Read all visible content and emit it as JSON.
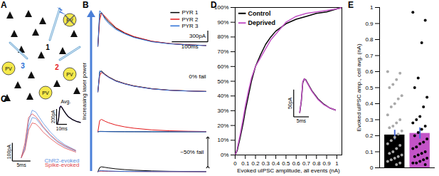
{
  "chart_data": [
    {
      "panel": "A",
      "type": "diagram",
      "cells": [
        "PV",
        "PV",
        "PV",
        "PV"
      ],
      "cell_color": "#f5e94c",
      "electrodes": [
        {
          "label": "3",
          "color": "#2b6fd6"
        },
        {
          "label": "1",
          "color": "#000000"
        },
        {
          "label": "2",
          "color": "#e41a1c"
        }
      ]
    },
    {
      "panel": "B",
      "type": "line",
      "tick_labels": false,
      "annotations": [
        "Increasing laser power",
        "0% fail",
        "~50% fail"
      ],
      "x": [
        0,
        5,
        10,
        20,
        30,
        50,
        75,
        100,
        150,
        200,
        250,
        300
      ],
      "xlim": [
        -10,
        310
      ],
      "ylim": [
        -30,
        960
      ],
      "series": [
        {
          "name": "PYR 1",
          "color": "#000000",
          "rows": [
            [
              0,
              850,
              900,
              760,
              650,
              480,
              350,
              250,
              130,
              70,
              40,
              20
            ],
            [
              0,
              520,
              560,
              470,
              400,
              300,
              220,
              160,
              85,
              45,
              25,
              12
            ],
            [
              0,
              10,
              10,
              8,
              6,
              4,
              3,
              2,
              1,
              0,
              0,
              0
            ],
            [
              0,
              110,
              130,
              115,
              100,
              75,
              55,
              40,
              20,
              10,
              6,
              3
            ]
          ]
        },
        {
          "name": "PYR 2",
          "color": "#e41a1c",
          "rows": [
            [
              0,
              700,
              880,
              800,
              690,
              500,
              360,
              260,
              135,
              72,
              40,
              20
            ],
            [
              0,
              430,
              520,
              460,
              390,
              290,
              215,
              155,
              80,
              42,
              24,
              12
            ],
            [
              0,
              300,
              330,
              280,
              240,
              180,
              130,
              95,
              50,
              26,
              14,
              7
            ],
            [
              0,
              15,
              15,
              12,
              10,
              7,
              5,
              3,
              2,
              1,
              0,
              0
            ]
          ]
        },
        {
          "name": "PYR 3",
          "color": "#2b6fd6",
          "rows": [
            [
              0,
              950,
              900,
              720,
              610,
              450,
              330,
              235,
              120,
              65,
              35,
              18
            ],
            [
              0,
              560,
              540,
              450,
              385,
              285,
              210,
              150,
              78,
              40,
              22,
              10
            ],
            [
              0,
              5,
              5,
              4,
              3,
              2,
              1,
              1,
              0,
              0,
              0,
              0
            ],
            [
              0,
              25,
              25,
              20,
              16,
              12,
              8,
              6,
              3,
              2,
              1,
              0
            ]
          ]
        }
      ],
      "scale_bars": [
        {
          "axis": "y",
          "value": 300,
          "label": "300pA"
        },
        {
          "axis": "x",
          "value": 100,
          "label": "100ms"
        }
      ]
    },
    {
      "panel": "C",
      "type": "line",
      "tick_labels": false,
      "x": [
        0,
        1,
        2,
        3,
        4,
        5,
        6,
        8,
        10,
        12,
        15
      ],
      "xlim": [
        -5,
        16
      ],
      "ylim": [
        -80,
        300
      ],
      "series": [
        {
          "name": "ChR2-evoked",
          "color": "#5b8fe0",
          "traces": [
            [
              0,
              60,
              200,
              260,
              250,
              220,
              190,
              140,
              100,
              70,
              40
            ],
            [
              0,
              50,
              170,
              220,
              215,
              190,
              165,
              120,
              85,
              60,
              35
            ]
          ]
        },
        {
          "name": "Spike-evoked",
          "color": "#e0454a",
          "traces": [
            [
              0,
              80,
              220,
              240,
              225,
              200,
              170,
              125,
              90,
              65,
              38
            ],
            [
              0,
              40,
              150,
              190,
              185,
              165,
              140,
              105,
              75,
              52,
              30
            ]
          ]
        }
      ],
      "scale_bars": [
        {
          "axis": "y",
          "value": 100,
          "label": "100pA"
        },
        {
          "axis": "x",
          "value": 5,
          "label": "5ms"
        }
      ],
      "inset": {
        "type": "line",
        "title": "Avg.",
        "tick_labels": false,
        "x": [
          0,
          1,
          2,
          3,
          4,
          6,
          8,
          10,
          14,
          18,
          22
        ],
        "xlim": [
          -1,
          23
        ],
        "ylim": [
          -10,
          250
        ],
        "series": [
          {
            "color": "#7b5cc8",
            "values": [
              0,
              70,
              210,
              230,
              215,
              170,
              130,
              95,
              55,
              30,
              15
            ]
          },
          {
            "color": "#000000",
            "values": [
              0,
              60,
              200,
              225,
              212,
              168,
              128,
              93,
              54,
              29,
              14
            ]
          }
        ],
        "scale_bars": [
          {
            "axis": "y",
            "value": 200,
            "label": "200pA"
          },
          {
            "axis": "x",
            "value": 10,
            "label": "10ms"
          }
        ]
      }
    },
    {
      "panel": "D",
      "type": "line",
      "x_label": "Evoked uIPSC amplitude, all events (nA)",
      "x": [
        0,
        0.02,
        0.05,
        0.08,
        0.1,
        0.13,
        0.16,
        0.2,
        0.25,
        0.3,
        0.35,
        0.4,
        0.5,
        0.6,
        0.7,
        0.8,
        0.9,
        1.0,
        1.05
      ],
      "xlim": [
        0,
        1.05
      ],
      "ylim": [
        0,
        100
      ],
      "xticks": [
        0,
        0.1,
        0.2,
        0.3,
        0.4,
        0.5,
        0.6,
        0.7,
        0.8,
        0.9,
        1
      ],
      "yticks": [
        {
          "value": 0,
          "label": "0%"
        },
        {
          "value": 10,
          "label": "10%"
        },
        {
          "value": 20,
          "label": "20%"
        },
        {
          "value": 30,
          "label": "30%"
        },
        {
          "value": 40,
          "label": "40%"
        },
        {
          "value": 50,
          "label": "50%"
        },
        {
          "value": 60,
          "label": "60%"
        },
        {
          "value": 70,
          "label": "70%"
        },
        {
          "value": 80,
          "label": "80%"
        },
        {
          "value": 90,
          "label": "90%"
        },
        {
          "value": 100,
          "label": "100%"
        }
      ],
      "legend": "top-left",
      "series": [
        {
          "name": "Control",
          "color": "#000000",
          "values": [
            0,
            3,
            12,
            22,
            30,
            40,
            50,
            60,
            68,
            75,
            80,
            84,
            89,
            92,
            94,
            96,
            97,
            99,
            100
          ]
        },
        {
          "name": "Deprived",
          "color": "#c353c7",
          "values": [
            0,
            4,
            14,
            25,
            33,
            43,
            52,
            60,
            66,
            72,
            78,
            82,
            90,
            94,
            96,
            97,
            98,
            99,
            100
          ]
        }
      ],
      "inset": {
        "type": "line",
        "tick_labels": false,
        "x": [
          0,
          0.5,
          1,
          1.5,
          2,
          3,
          4,
          6,
          8,
          10,
          12
        ],
        "xlim": [
          -3,
          12
        ],
        "ylim": [
          -10,
          70
        ],
        "series": [
          {
            "color": "#000000",
            "values": [
              0,
              20,
              55,
              62,
              60,
              50,
              40,
              25,
              15,
              8,
              4
            ]
          },
          {
            "color": "#c353c7",
            "values": [
              0,
              22,
              57,
              62,
              59,
              49,
              39,
              24,
              14,
              8,
              4
            ]
          }
        ],
        "scale_bars": [
          {
            "axis": "y",
            "value": 50,
            "label": "50pA"
          },
          {
            "axis": "x",
            "value": 5,
            "label": "5ms"
          }
        ]
      }
    },
    {
      "panel": "E",
      "type": "bar",
      "y_label": "Evoked uIPSC amp., cell avg. (nA)",
      "categories": [
        null,
        null
      ],
      "values": [
        0.205,
        0.215
      ],
      "errors": [
        0.03,
        0.035
      ],
      "colors": [
        "#000000",
        "#c353c7"
      ],
      "error_color": "#4a6bd8",
      "points": [
        [
          0.6,
          0.59,
          0.55,
          0.52,
          0.5,
          0.45,
          0.43,
          0.4,
          0.38,
          0.33,
          0.3,
          0.28,
          0.26,
          0.25,
          0.23,
          0.21,
          0.19,
          0.17,
          0.15,
          0.14,
          0.12,
          0.1,
          0.09,
          0.08,
          0.07,
          0.06,
          0.05,
          0.04,
          0.03,
          0.02
        ],
        [
          0.97,
          0.92,
          0.78,
          0.56,
          0.5,
          0.44,
          0.38,
          0.32,
          0.3,
          0.28,
          0.26,
          0.24,
          0.22,
          0.2,
          0.18,
          0.16,
          0.15,
          0.13,
          0.12,
          0.1,
          0.09,
          0.08,
          0.07,
          0.06,
          0.05,
          0.04,
          0.03,
          0.03,
          0.02
        ]
      ],
      "point_colors": [
        "#a9a9a9",
        "#000000"
      ],
      "ylim": [
        0,
        1
      ],
      "yticks": [
        0,
        0.1,
        0.2,
        0.3,
        0.4,
        0.5,
        0.6,
        0.7,
        0.8,
        0.9,
        1
      ]
    }
  ]
}
